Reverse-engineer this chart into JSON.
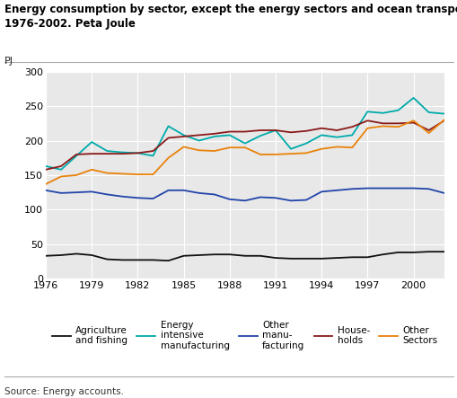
{
  "title_line1": "Energy consumption by sector, except the energy sectors and ocean transport",
  "title_line2": "1976-2002. Peta Joule",
  "ylabel": "PJ",
  "years": [
    1976,
    1977,
    1978,
    1979,
    1980,
    1981,
    1982,
    1983,
    1984,
    1985,
    1986,
    1987,
    1988,
    1989,
    1990,
    1991,
    1992,
    1993,
    1994,
    1995,
    1996,
    1997,
    1998,
    1999,
    2000,
    2001,
    2002
  ],
  "series": {
    "Agriculture and fishing": {
      "color": "#111111",
      "data": [
        33,
        34,
        36,
        34,
        28,
        27,
        27,
        27,
        26,
        33,
        34,
        35,
        35,
        33,
        33,
        30,
        29,
        29,
        29,
        30,
        31,
        31,
        35,
        38,
        38,
        39,
        39
      ]
    },
    "Energy intensive manufacturing": {
      "color": "#00AAAA",
      "data": [
        163,
        158,
        178,
        198,
        185,
        183,
        182,
        178,
        221,
        208,
        200,
        206,
        208,
        196,
        207,
        215,
        188,
        196,
        208,
        205,
        208,
        242,
        240,
        244,
        262,
        241,
        239
      ]
    },
    "Other manufacturing": {
      "color": "#2244AA",
      "data": [
        128,
        124,
        125,
        126,
        122,
        119,
        117,
        116,
        128,
        128,
        124,
        122,
        115,
        113,
        118,
        117,
        113,
        114,
        126,
        128,
        130,
        131,
        131,
        131,
        131,
        130,
        124
      ]
    },
    "Households": {
      "color": "#8B1A1A",
      "data": [
        158,
        163,
        180,
        181,
        181,
        181,
        182,
        185,
        204,
        206,
        208,
        210,
        213,
        213,
        215,
        215,
        212,
        214,
        218,
        215,
        220,
        229,
        225,
        225,
        226,
        215,
        229
      ]
    },
    "Other Sectors": {
      "color": "#E8820A",
      "data": [
        137,
        148,
        150,
        158,
        153,
        152,
        151,
        151,
        175,
        191,
        186,
        185,
        190,
        190,
        180,
        180,
        181,
        182,
        188,
        191,
        190,
        218,
        221,
        220,
        229,
        211,
        230
      ]
    }
  },
  "xticks": [
    1976,
    1979,
    1982,
    1985,
    1988,
    1991,
    1994,
    1997,
    2000
  ],
  "yticks": [
    0,
    50,
    100,
    150,
    200,
    250,
    300
  ],
  "ylim": [
    0,
    300
  ],
  "xlim": [
    1976,
    2002
  ],
  "source": "Source: Energy accounts.",
  "plot_bg": "#e8e8e8",
  "grid_color": "#ffffff",
  "legend_labels": [
    "Agriculture\nand fishing",
    "Energy\nintensive\nmanufacturing",
    "Other\nmanu-\nfacturing",
    "House-\nholds",
    "Other\nSectors"
  ]
}
